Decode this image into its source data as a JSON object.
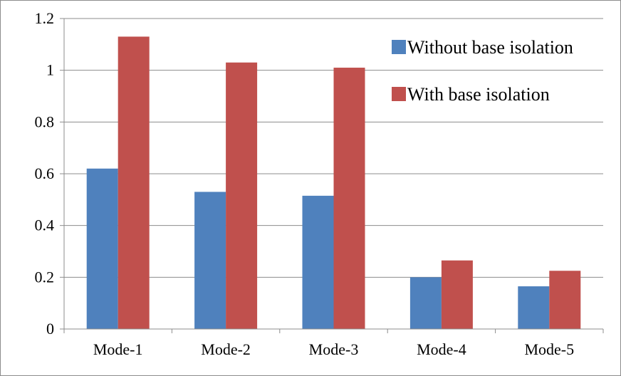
{
  "chart_data": {
    "type": "bar",
    "title": "",
    "xlabel": "",
    "ylabel": "",
    "categories": [
      "Mode-1",
      "Mode-2",
      "Mode-3",
      "Mode-4",
      "Mode-5"
    ],
    "series": [
      {
        "name": "Without base isolation",
        "color": "#4f81bd",
        "values": [
          0.62,
          0.53,
          0.515,
          0.2,
          0.165
        ]
      },
      {
        "name": "With base isolation",
        "color": "#c0504d",
        "values": [
          1.13,
          1.03,
          1.01,
          0.265,
          0.225
        ]
      }
    ],
    "ylim": [
      0,
      1.2
    ],
    "yticks": [
      "0",
      "0.2",
      "0.4",
      "0.6",
      "0.8",
      "1",
      "1.2"
    ],
    "grid": true,
    "legend_position": "top-right"
  }
}
